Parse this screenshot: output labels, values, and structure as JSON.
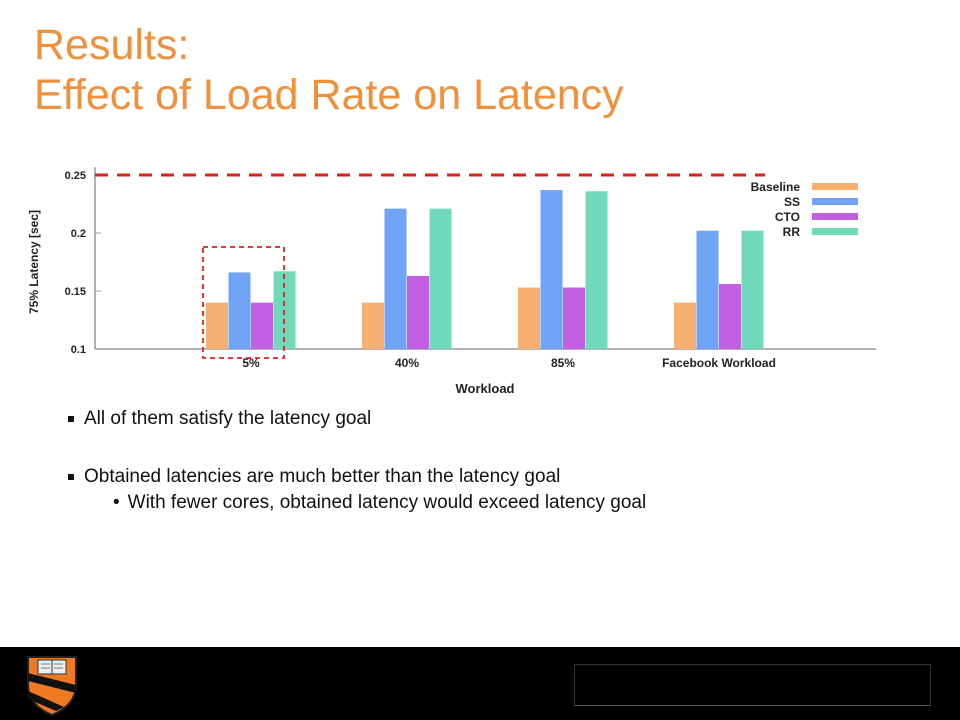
{
  "title": {
    "line1": "Results:",
    "line2": "Effect of Load Rate on Latency"
  },
  "chart_data": {
    "type": "bar",
    "categories": [
      "5%",
      "40%",
      "85%",
      "Facebook Workload"
    ],
    "series": [
      {
        "name": "Baseline",
        "color": "#f8b072",
        "values": [
          0.14,
          0.14,
          0.153,
          0.14
        ]
      },
      {
        "name": "SS",
        "color": "#6ea3f5",
        "values": [
          0.166,
          0.221,
          0.237,
          0.202
        ]
      },
      {
        "name": "CTO",
        "color": "#c25fe3",
        "values": [
          0.14,
          0.163,
          0.153,
          0.156
        ]
      },
      {
        "name": "RR",
        "color": "#6fd9b9",
        "values": [
          0.167,
          0.221,
          0.236,
          0.202
        ]
      }
    ],
    "xlabel": "Workload",
    "ylabel": "75% Latency [sec]",
    "ylim": [
      0.1,
      0.25
    ],
    "yticks": [
      "0.1",
      "0.15",
      "0.2",
      "0.25"
    ],
    "goal_line": 0.25,
    "goal_line_color": "#e02020",
    "highlight_category": "5%",
    "legend_position": "top-right",
    "grid": false
  },
  "bullets": [
    "All of them satisfy the latency goal",
    "Obtained latencies are much better than the latency goal"
  ],
  "sub_bullet": "With fewer cores, obtained latency would exceed latency goal",
  "sub_bullet_marker": "•"
}
